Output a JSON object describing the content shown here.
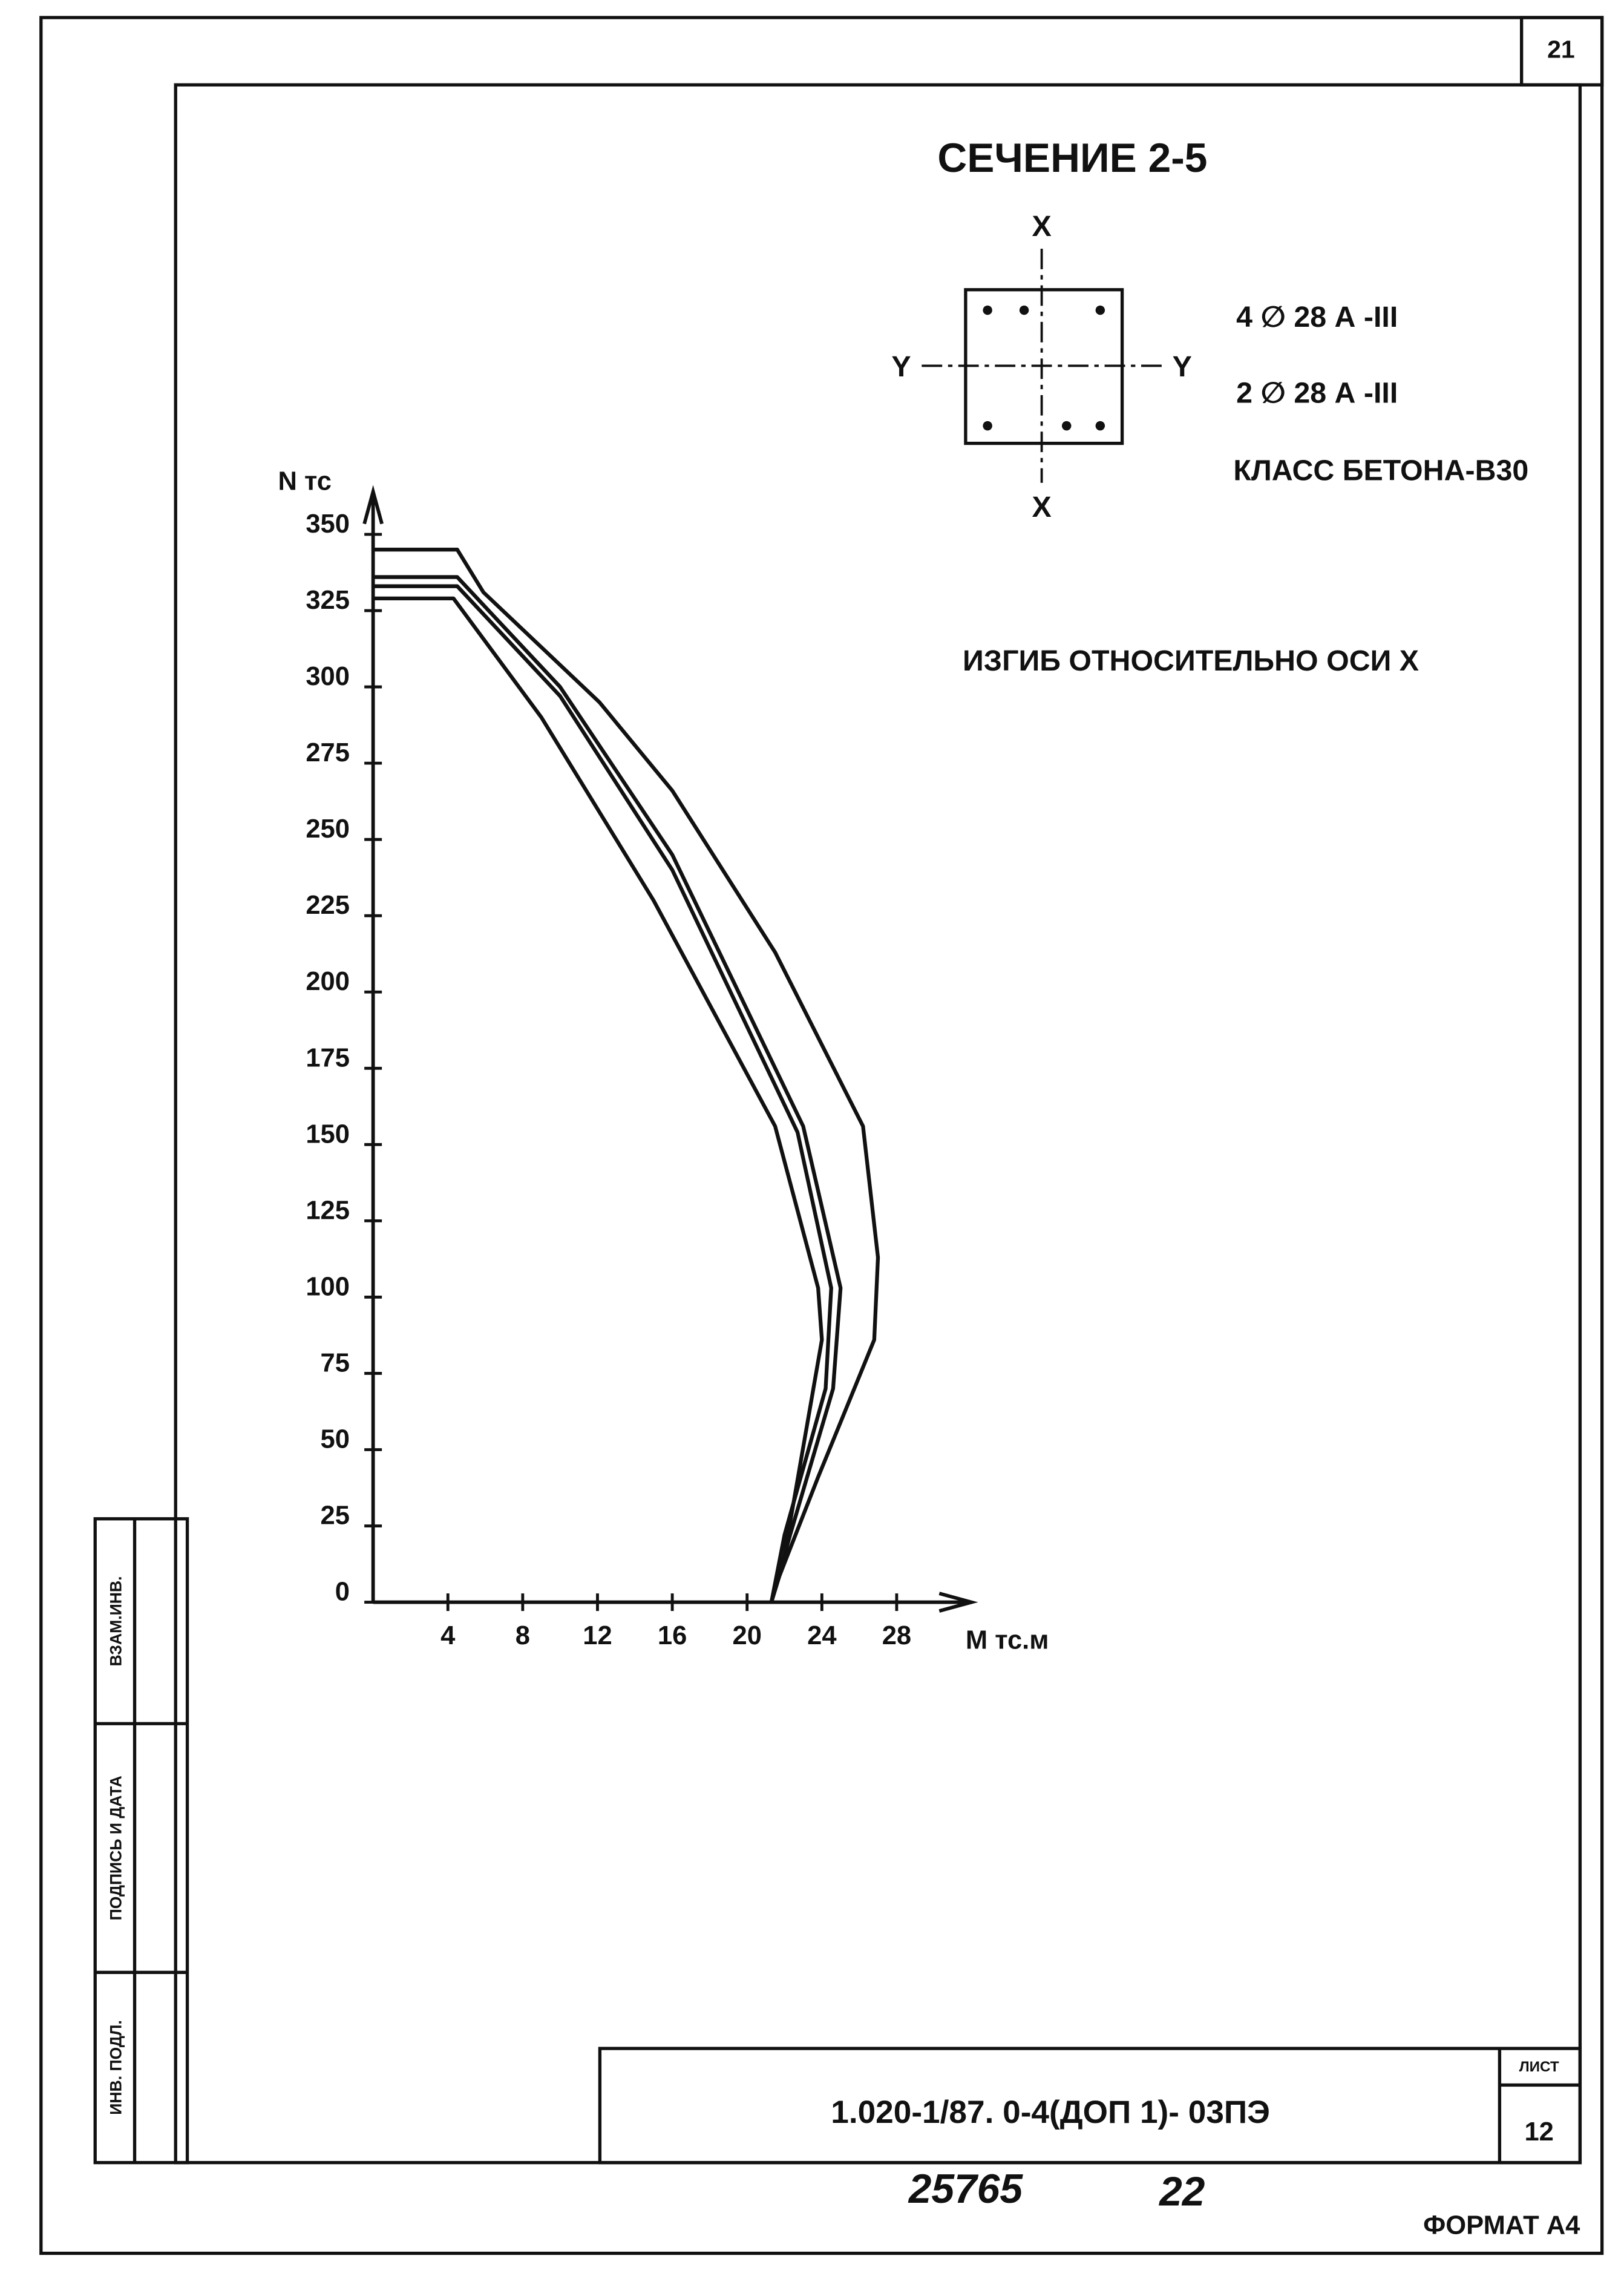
{
  "page_number": "21",
  "section_title": "СЕЧЕНИЕ 2-5",
  "section": {
    "axis_x_top": "X",
    "axis_x_bottom": "X",
    "axis_y_left": "Y",
    "axis_y_right": "Y",
    "rebar_1": "4 ∅ 28 А -III",
    "rebar_2": "2 ∅ 28 А -III",
    "concrete": "КЛАСС БЕТОНА-В30"
  },
  "stamp": {
    "row_1": "ВЗАМ.ИНВ.",
    "row_2": "ПОДПИСЬ И ДАТА",
    "row_3": "ИНВ. ПОДЛ."
  },
  "title_block": {
    "code": "1.020-1/87. 0-4(ДОП 1)- 03ПЭ",
    "sheet_label": "ЛИСТ",
    "sheet": "12"
  },
  "footer": {
    "number": "25765",
    "number_2": "22",
    "format": "ФОРМАТ А4"
  },
  "chart_data": {
    "type": "line",
    "title": "ИЗГИБ ОТНОСИТЕЛЬНО ОСИ X",
    "x_label": "M тс.м",
    "y_label": "N тс",
    "xlim": [
      0,
      32
    ],
    "ylim": [
      0,
      364
    ],
    "xticks": [
      4,
      8,
      12,
      16,
      20,
      24,
      28
    ],
    "yticks": [
      0,
      25,
      50,
      75,
      100,
      125,
      150,
      175,
      200,
      225,
      250,
      275,
      300,
      325,
      350
    ],
    "series": [
      {
        "color": "#111111",
        "x": [
          0,
          4.5,
          5.9,
          12.1,
          16,
          21.5,
          26.2,
          27,
          26.8,
          23.8,
          21.5,
          21.3
        ],
        "values": [
          345,
          345,
          331,
          295,
          266,
          213,
          156,
          113,
          86,
          41,
          5,
          0
        ]
      },
      {
        "color": "#111111",
        "x": [
          0,
          4.5,
          10,
          16,
          23,
          25,
          24.6,
          22.3,
          21.3
        ],
        "values": [
          336,
          336,
          300,
          245,
          156,
          103,
          70,
          22,
          0
        ]
      },
      {
        "color": "#111111",
        "x": [
          0,
          4.5,
          10,
          16,
          22.7,
          24.5,
          24.2,
          22,
          21.3
        ],
        "values": [
          333,
          333,
          297,
          240,
          154,
          103,
          70,
          22,
          0
        ]
      },
      {
        "color": "#111111",
        "x": [
          0,
          4.3,
          9,
          15,
          21.5,
          23.8,
          24,
          21.9,
          21.3
        ],
        "values": [
          329,
          329,
          290,
          230,
          156,
          103,
          86,
          12,
          0
        ]
      }
    ]
  }
}
